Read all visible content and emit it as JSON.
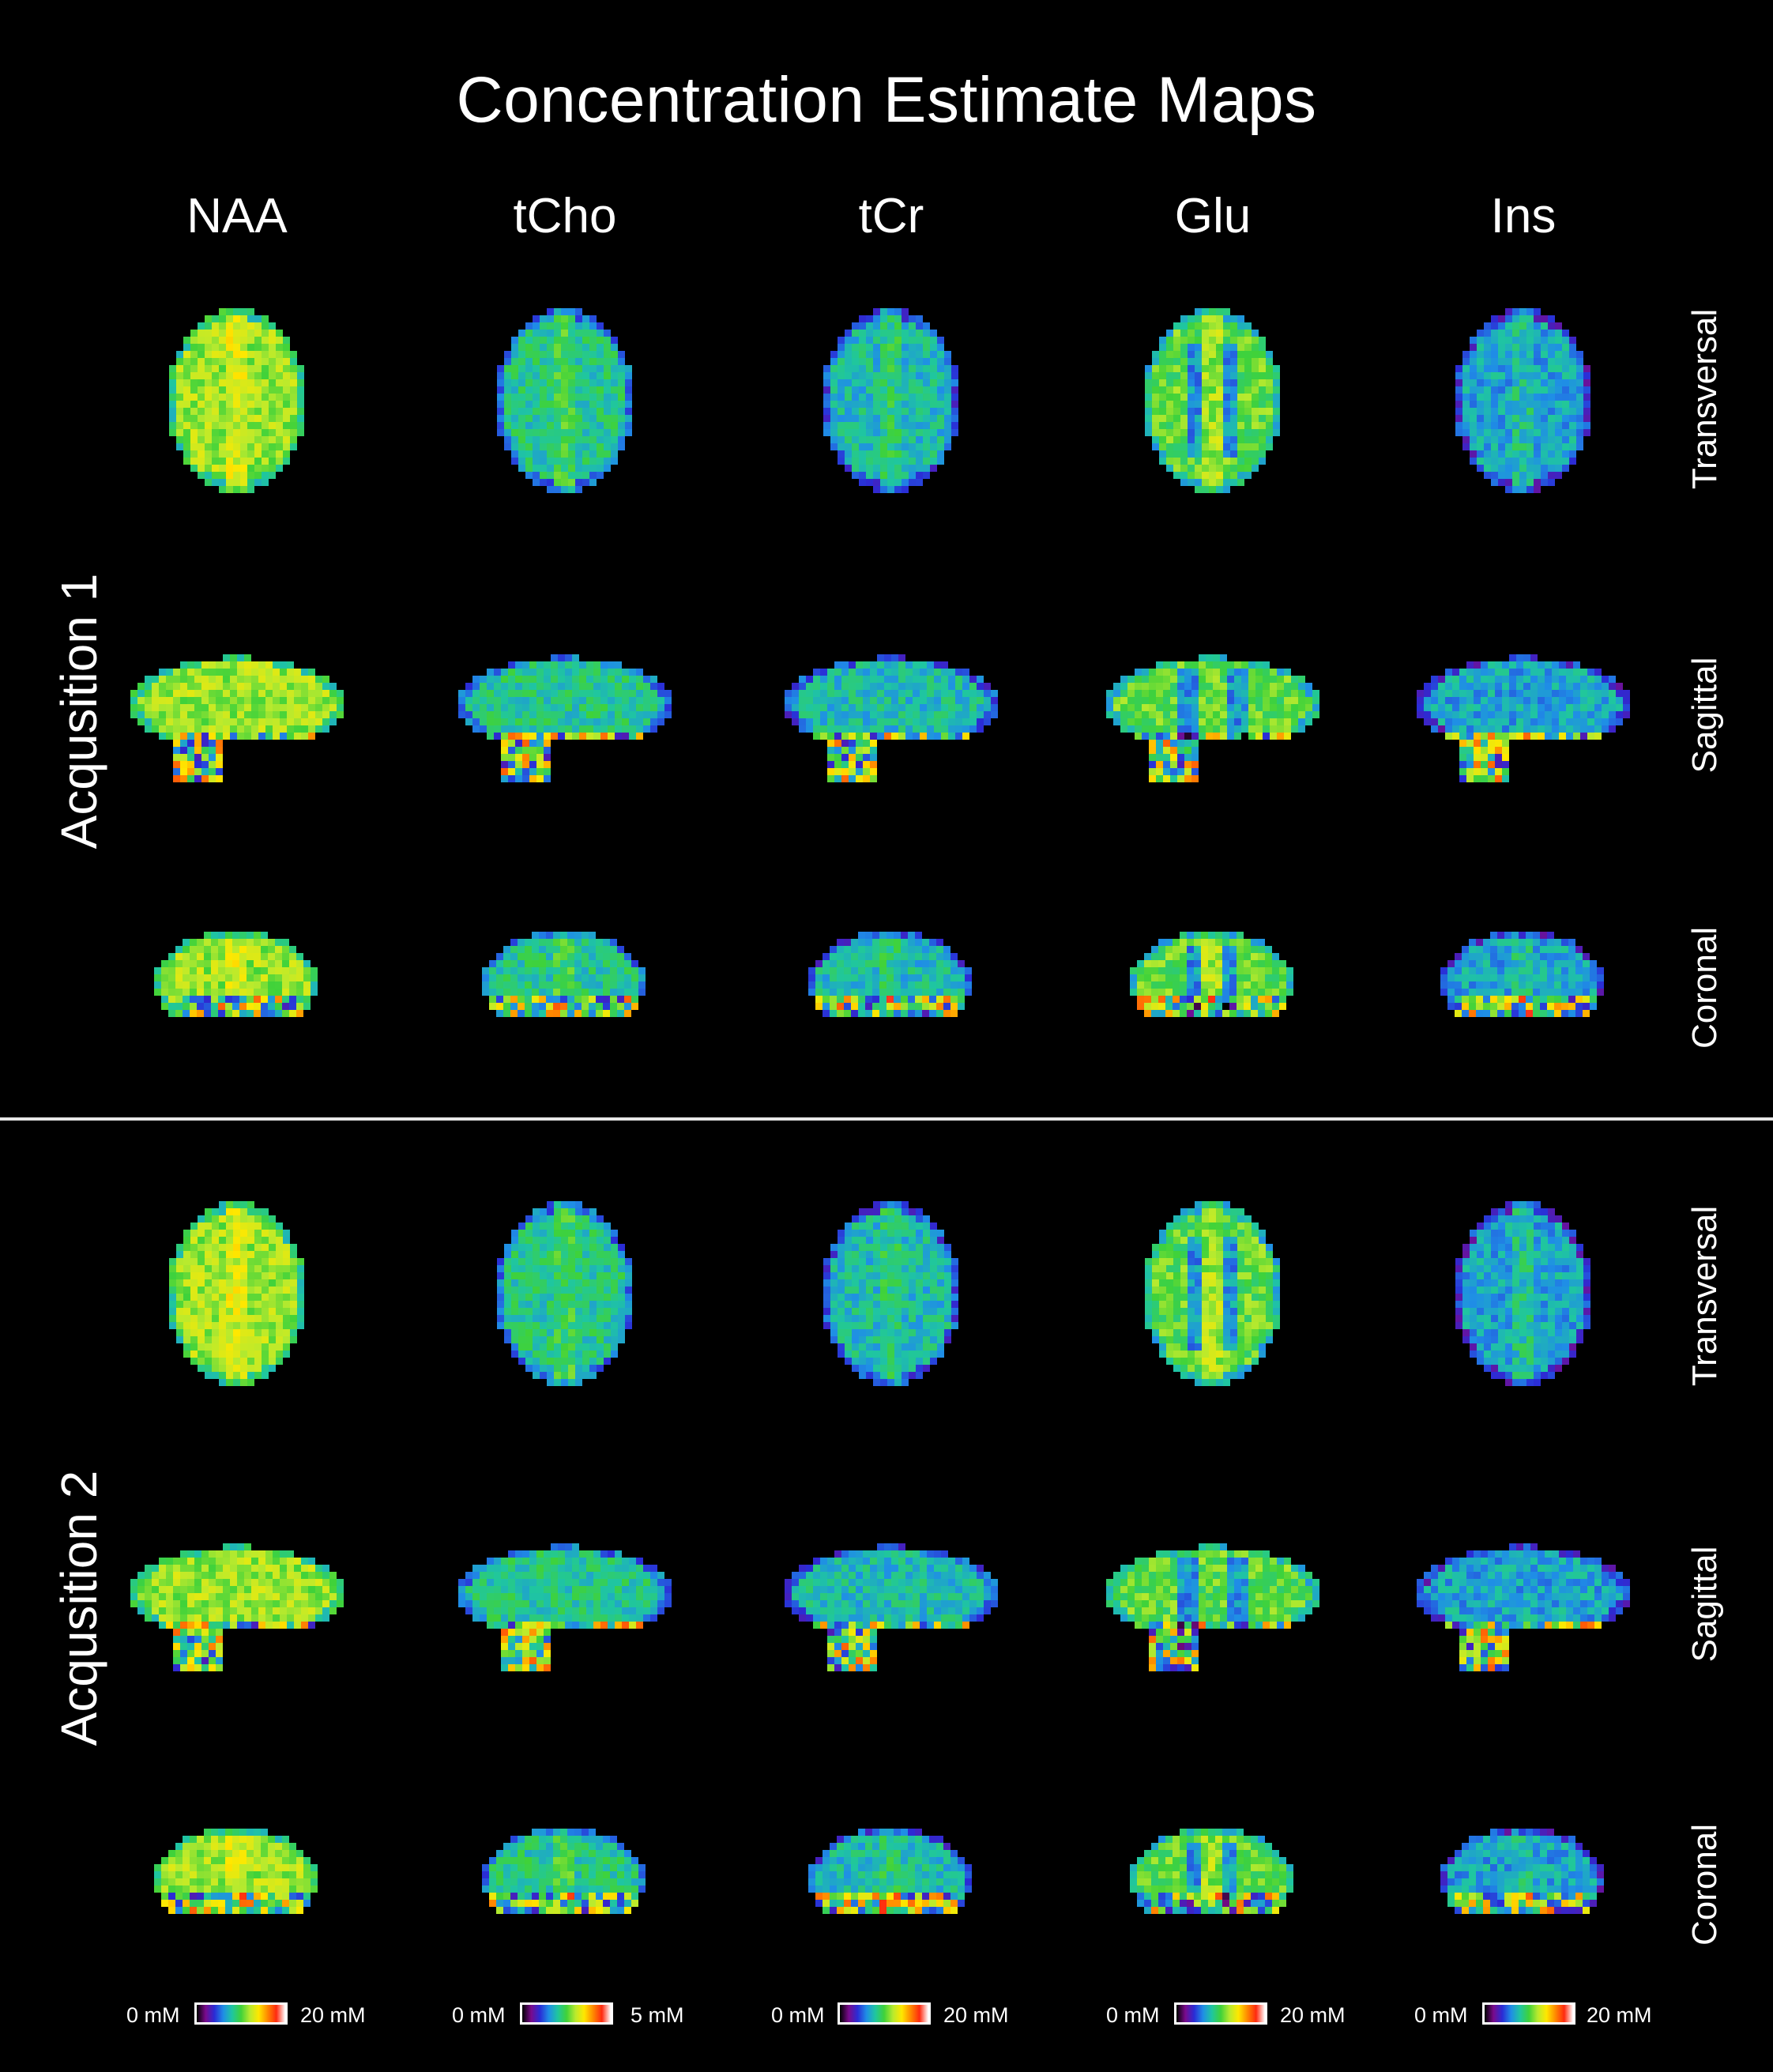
{
  "figure": {
    "title": "Concentration Estimate Maps",
    "metabolites": [
      "NAA",
      "tCho",
      "tCr",
      "Glu",
      "Ins"
    ],
    "acquisitions": [
      "Acqusition 1",
      "Acqusition 2"
    ],
    "views": [
      "Transversal",
      "Sagittal",
      "Coronal"
    ]
  },
  "colorbars": [
    {
      "min_label": "0 mM",
      "max_label": "20 mM"
    },
    {
      "min_label": "0 mM",
      "max_label": "5 mM"
    },
    {
      "min_label": "0 mM",
      "max_label": "20 mM"
    },
    {
      "min_label": "0 mM",
      "max_label": "20 mM"
    },
    {
      "min_label": "0 mM",
      "max_label": "20 mM"
    }
  ],
  "colormap": [
    "#000000",
    "#7a0a8c",
    "#2a2cd6",
    "#1f8ee6",
    "#1fc6a0",
    "#3fd23a",
    "#b8ea2e",
    "#ffe800",
    "#ff8a00",
    "#ff2a10",
    "#ffffff"
  ],
  "map_levels": {
    "NAA": 0.58,
    "tCho": 0.42,
    "tCr": 0.38,
    "Glu": 0.52,
    "Ins": 0.34
  }
}
